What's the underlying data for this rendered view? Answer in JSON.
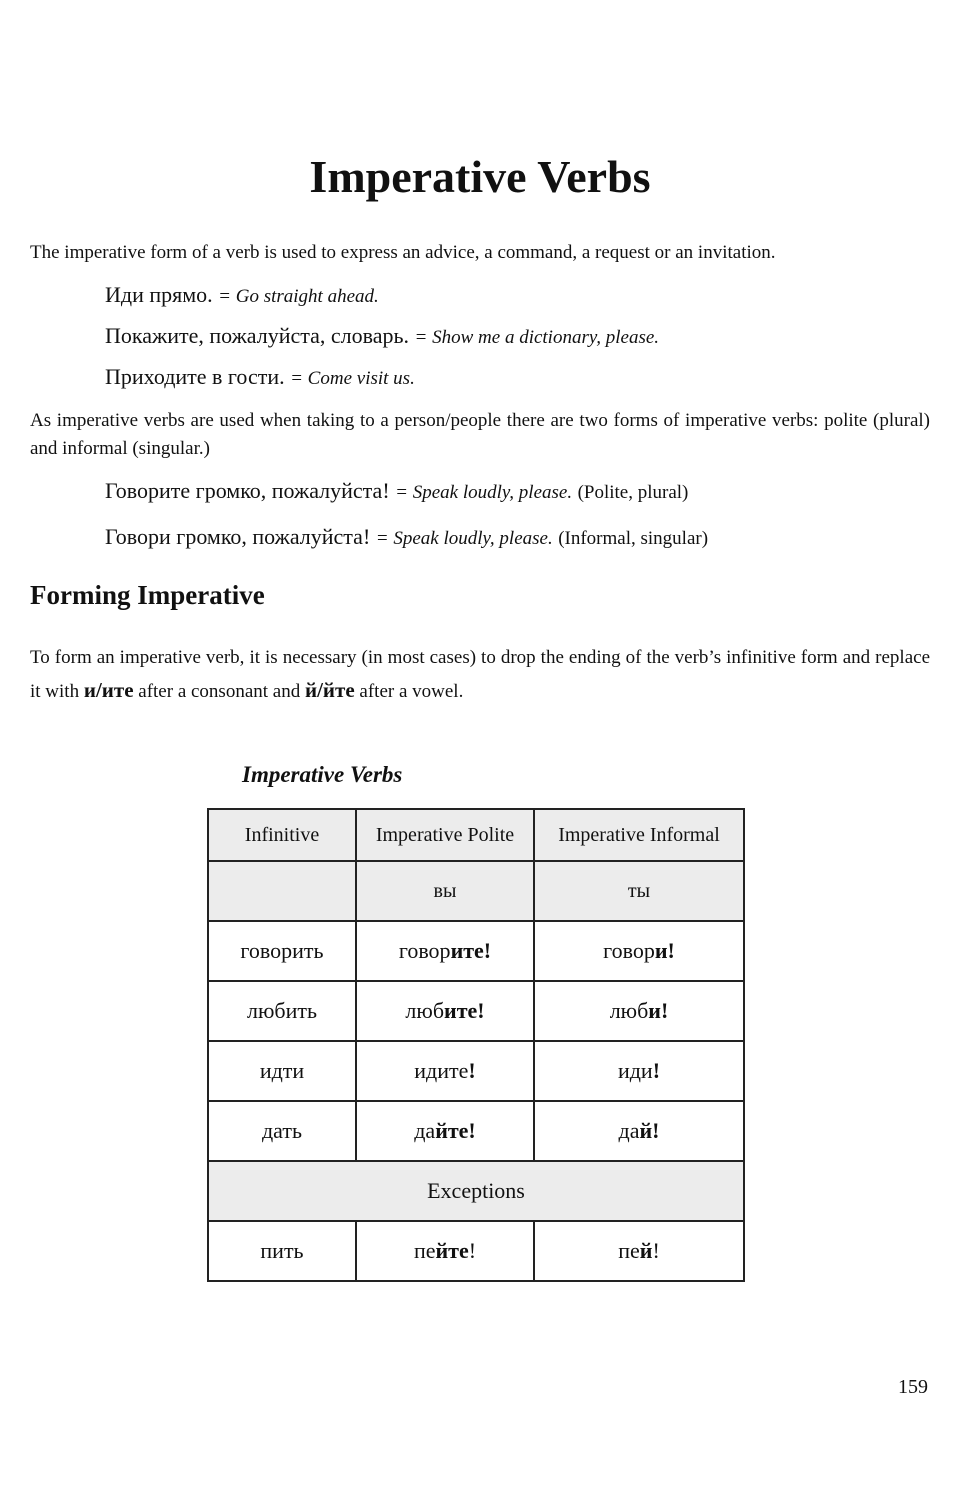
{
  "title": "Imperative Verbs",
  "intro": "The imperative form of a verb is used to express an advice, a command, a request or an invitation.",
  "examples1": [
    {
      "ru": "Иди прямо.",
      "en": "= Go straight ahead."
    },
    {
      "ru": "Покажите, пожалуйста, словарь.",
      "en": "= Show me a dictionary, please."
    },
    {
      "ru": "Приходите в гости.",
      "en": "= Come visit us."
    }
  ],
  "para2": "As imperative verbs are used when taking to a person/people there are two forms of imperative verbs: polite (plural) and informal (singular.)",
  "examples2": [
    {
      "ru": "Говорите громко, пожалуйста!",
      "en": "= Speak loudly, please.",
      "note": "(Polite, plural)"
    },
    {
      "ru": "Говори громко, пожалуйста!",
      "en": "= Speak loudly, please.",
      "note": "(Informal, singular)"
    }
  ],
  "section_heading": "Forming Imperative",
  "para3": {
    "a": "To form an imperative verb, it is necessary (in most cases) to drop the ending of the verb’s infinitive form and replace it with ",
    "b1": "и/ите",
    "c": " after a consonant and ",
    "b2": "й/йте",
    "d": " after a vowel."
  },
  "table": {
    "caption": "Imperative Verbs",
    "headers": [
      "Infinitive",
      "Imperative Polite",
      "Imperative Informal"
    ],
    "pronouns": [
      "",
      "вы",
      "ты"
    ],
    "rows": [
      [
        [
          {
            "t": "говорить",
            "b": false
          }
        ],
        [
          {
            "t": "говор",
            "b": false
          },
          {
            "t": "ите!",
            "b": true
          }
        ],
        [
          {
            "t": "говор",
            "b": false
          },
          {
            "t": "и!",
            "b": true
          }
        ]
      ],
      [
        [
          {
            "t": "любить",
            "b": false
          }
        ],
        [
          {
            "t": "люб",
            "b": false
          },
          {
            "t": "ите!",
            "b": true
          }
        ],
        [
          {
            "t": "люб",
            "b": false
          },
          {
            "t": "и!",
            "b": true
          }
        ]
      ],
      [
        [
          {
            "t": "идти",
            "b": false
          }
        ],
        [
          {
            "t": "идите",
            "b": false
          },
          {
            "t": "!",
            "b": true
          }
        ],
        [
          {
            "t": "иди",
            "b": false
          },
          {
            "t": "!",
            "b": true
          }
        ]
      ],
      [
        [
          {
            "t": "дать",
            "b": false
          }
        ],
        [
          {
            "t": "да",
            "b": false
          },
          {
            "t": "йте!",
            "b": true
          }
        ],
        [
          {
            "t": "да",
            "b": false
          },
          {
            "t": "й!",
            "b": true
          }
        ]
      ]
    ],
    "exceptions_label": "Exceptions",
    "exception_rows": [
      [
        [
          {
            "t": "пить",
            "b": false
          }
        ],
        [
          {
            "t": "пе",
            "b": false
          },
          {
            "t": "йте",
            "b": true
          },
          {
            "t": "!",
            "b": false
          }
        ],
        [
          {
            "t": "пе",
            "b": false
          },
          {
            "t": "й",
            "b": true
          },
          {
            "t": "!",
            "b": false
          }
        ]
      ]
    ]
  },
  "page_number": "159"
}
